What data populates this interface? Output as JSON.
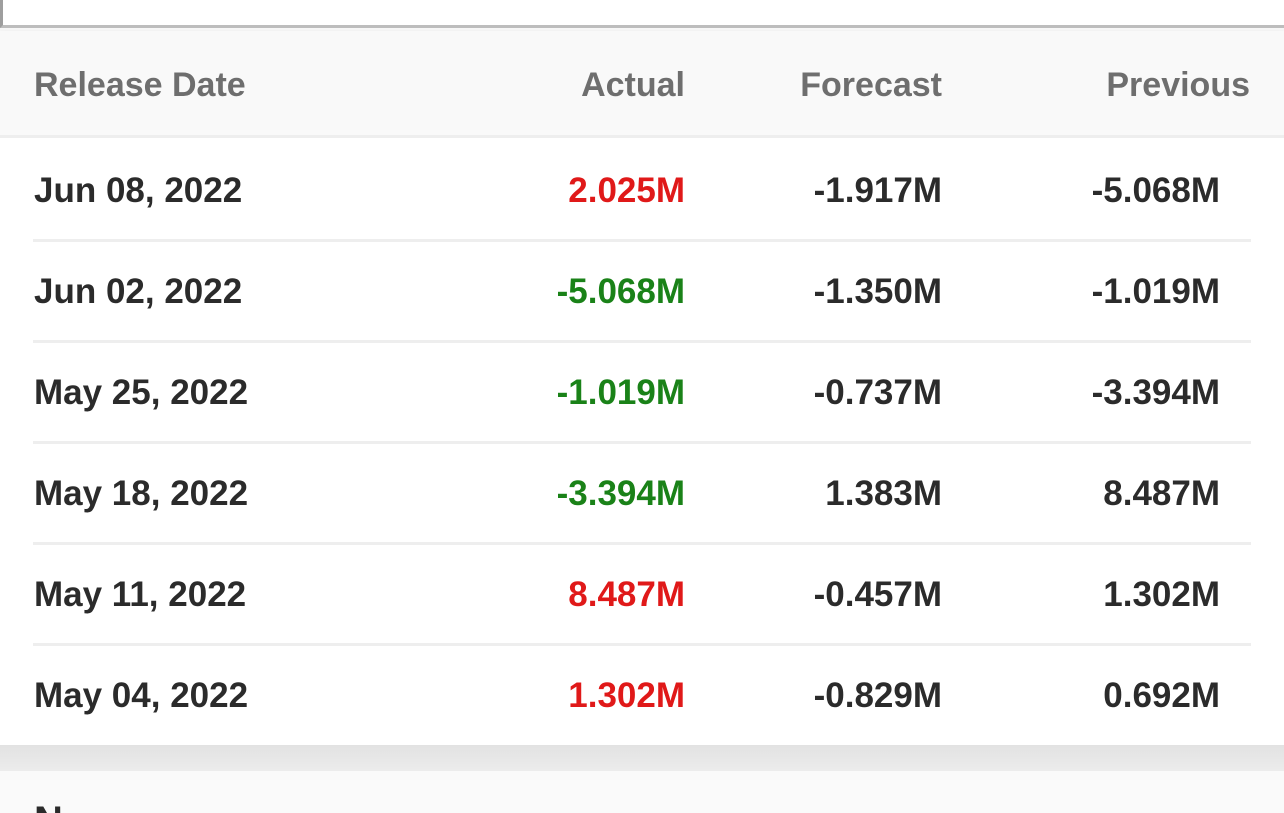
{
  "table": {
    "headers": {
      "release_date": "Release Date",
      "actual": "Actual",
      "forecast": "Forecast",
      "previous": "Previous"
    },
    "rows": [
      {
        "date": "Jun 08, 2022",
        "actual": "2.025M",
        "actual_trend": "up",
        "forecast": "-1.917M",
        "previous": "-5.068M"
      },
      {
        "date": "Jun 02, 2022",
        "actual": "-5.068M",
        "actual_trend": "down",
        "forecast": "-1.350M",
        "previous": "-1.019M"
      },
      {
        "date": "May 25, 2022",
        "actual": "-1.019M",
        "actual_trend": "down",
        "forecast": "-0.737M",
        "previous": "-3.394M"
      },
      {
        "date": "May 18, 2022",
        "actual": "-3.394M",
        "actual_trend": "down",
        "forecast": "1.383M",
        "previous": "8.487M"
      },
      {
        "date": "May 11, 2022",
        "actual": "8.487M",
        "actual_trend": "up",
        "forecast": "-0.457M",
        "previous": "1.302M"
      },
      {
        "date": "May 04, 2022",
        "actual": "1.302M",
        "actual_trend": "up",
        "forecast": "-0.829M",
        "previous": "0.692M"
      }
    ]
  },
  "next_section": {
    "title": "N"
  },
  "colors": {
    "up": "#e01919",
    "down": "#1a8218",
    "text": "#2b2b2b",
    "header_text": "#6e6e6e"
  }
}
